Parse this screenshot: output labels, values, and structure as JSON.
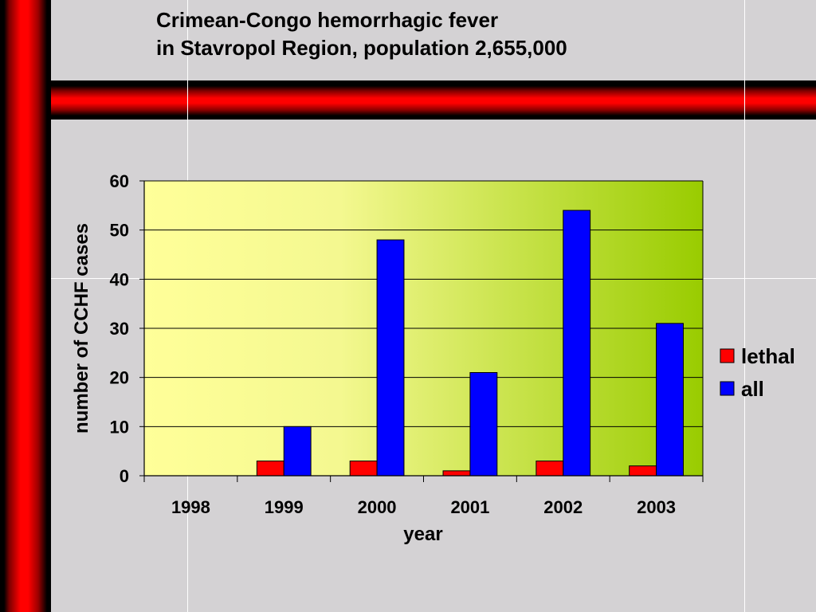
{
  "title": {
    "line1": "Crimean-Congo hemorrhagic fever",
    "line2": "in Stavropol Region, population 2,655,000"
  },
  "colors": {
    "lethal": "#ff0000",
    "all": "#0000ff",
    "plot_bg_left": "#ffff99",
    "plot_bg_right": "#99cc00",
    "frame_red": "#ff0000"
  },
  "chart_data": {
    "type": "bar",
    "categories": [
      "1998",
      "1999",
      "2000",
      "2001",
      "2002",
      "2003"
    ],
    "series": [
      {
        "name": "lethal",
        "values": [
          0,
          3,
          3,
          1,
          3,
          2
        ]
      },
      {
        "name": "all",
        "values": [
          0,
          10,
          48,
          21,
          54,
          31
        ]
      }
    ],
    "xlabel": "year",
    "ylabel": "number of CCHF cases",
    "ylim": [
      0,
      60
    ],
    "yticks": [
      0,
      10,
      20,
      30,
      40,
      50,
      60
    ],
    "grid": true,
    "legend_position": "right"
  }
}
